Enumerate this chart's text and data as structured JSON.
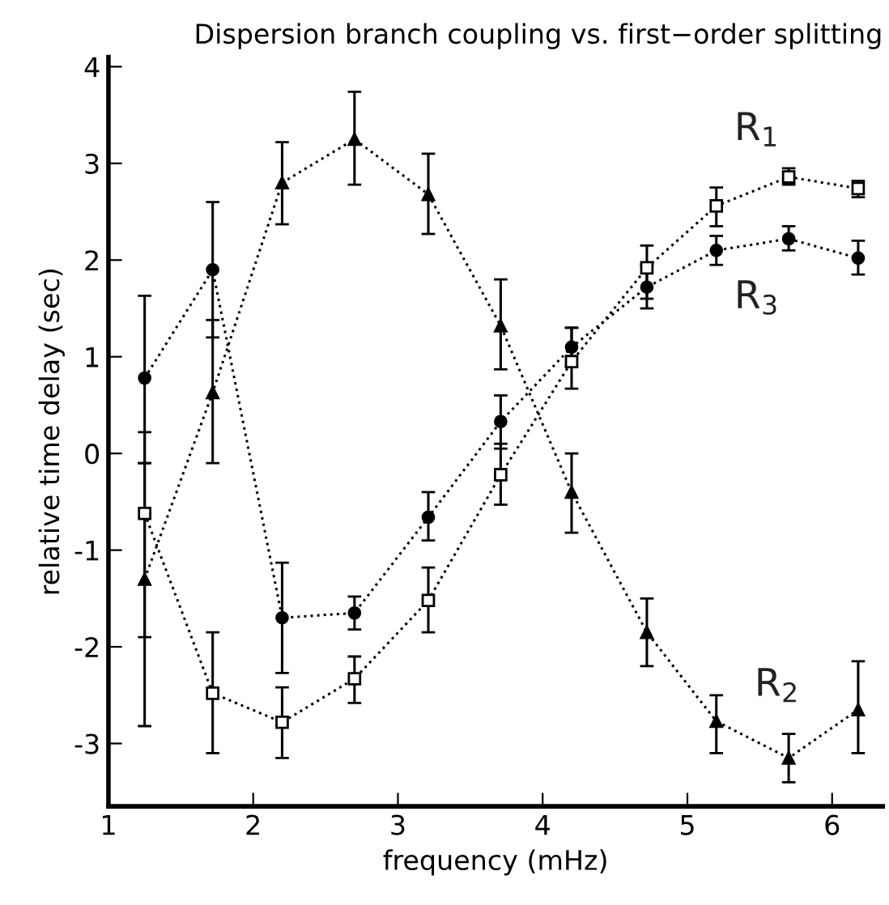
{
  "chart_data": {
    "type": "line",
    "title": "Dispersion branch coupling vs. first−order splitting",
    "xlabel": "frequency (mHz)",
    "ylabel": "relative time delay (sec)",
    "x": [
      1.25,
      1.72,
      2.2,
      2.7,
      3.21,
      3.71,
      4.2,
      4.72,
      5.2,
      5.7,
      6.18
    ],
    "series": [
      {
        "name": "R$_{1}$",
        "color": "#000000",
        "marker": "square",
        "values": [
          -0.62,
          -2.48,
          -2.78,
          -2.33,
          -1.52,
          -0.22,
          0.95,
          1.92,
          2.56,
          2.86,
          2.74
        ],
        "errors": [
          [
            -1.9,
            -0.1
          ],
          [
            -3.1,
            -1.85
          ],
          [
            -3.15,
            -2.42
          ],
          [
            -2.58,
            -2.1
          ],
          [
            -1.85,
            -1.18
          ],
          [
            -0.53,
            0.1
          ],
          [
            0.67,
            1.3
          ],
          [
            1.6,
            2.15
          ],
          [
            2.35,
            2.75
          ],
          [
            2.78,
            2.95
          ],
          [
            2.65,
            2.82
          ]
        ]
      },
      {
        "name": "R$_{2}$",
        "color": "#000000",
        "marker": "triangle",
        "values": [
          -1.3,
          0.63,
          2.8,
          3.25,
          2.68,
          1.32,
          -0.4,
          -1.85,
          -2.77,
          -3.15,
          -2.65
        ],
        "errors": [
          [
            -2.82,
            0.22
          ],
          [
            -0.1,
            1.38
          ],
          [
            2.37,
            3.22
          ],
          [
            2.78,
            3.74
          ],
          [
            2.27,
            3.1
          ],
          [
            0.87,
            1.8
          ],
          [
            -0.82,
            0.0
          ],
          [
            -2.2,
            -1.5
          ],
          [
            -3.1,
            -2.5
          ],
          [
            -3.4,
            -2.9
          ],
          [
            -3.1,
            -2.15
          ]
        ]
      },
      {
        "name": "R$_{3}$",
        "color": "#000000",
        "marker": "circle",
        "values": [
          0.78,
          1.9,
          -1.7,
          -1.65,
          -0.66,
          0.33,
          1.1,
          1.72,
          2.1,
          2.22,
          2.02
        ],
        "errors": [
          [
            -0.1,
            1.63
          ],
          [
            1.2,
            2.6
          ],
          [
            -2.27,
            -1.13
          ],
          [
            -1.82,
            -1.48
          ],
          [
            -0.9,
            -0.4
          ],
          [
            0.05,
            0.6
          ],
          [
            0.9,
            1.3
          ],
          [
            1.5,
            1.95
          ],
          [
            1.95,
            2.25
          ],
          [
            2.1,
            2.35
          ],
          [
            1.85,
            2.2
          ]
        ]
      }
    ],
    "xlim": [
      1,
      6.35
    ],
    "xticks": [
      1,
      2,
      3,
      4,
      5,
      6
    ],
    "ylim": [
      -3.65,
      4.1
    ],
    "yticks": [
      -3,
      -2,
      -1,
      0,
      1,
      2,
      3,
      4
    ],
    "line_style": "dotted",
    "grid": false,
    "legend": false
  }
}
